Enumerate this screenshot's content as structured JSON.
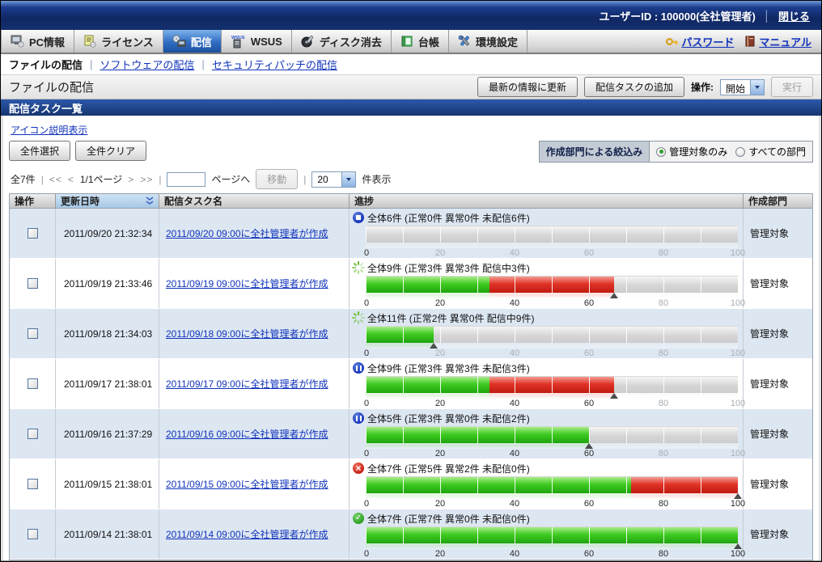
{
  "titlebar": {
    "user_label": "ユーザーID : 100000(全社管理者)",
    "close_label": "閉じる"
  },
  "tabs": [
    {
      "label": "PC情報",
      "selected": false
    },
    {
      "label": "ライセンス",
      "selected": false
    },
    {
      "label": "配信",
      "selected": true
    },
    {
      "label": "WSUS",
      "selected": false
    },
    {
      "label": "ディスク消去",
      "selected": false
    },
    {
      "label": "台帳",
      "selected": false
    },
    {
      "label": "環境設定",
      "selected": false
    }
  ],
  "quick_links": {
    "password": "パスワード",
    "manual": "マニュアル"
  },
  "subnav": {
    "current": "ファイルの配信",
    "software": "ソフトウェアの配信",
    "security_patch": "セキュリティパッチの配信"
  },
  "toolbar": {
    "page_title": "ファイルの配信",
    "refresh": "最新の情報に更新",
    "add_task": "配信タスクの追加",
    "operation_label": "操作:",
    "operation_value": "開始",
    "execute": "実行"
  },
  "section": {
    "title": "配信タスク一覧",
    "icon_legend_link": "アイコン説明表示",
    "select_all": "全件選択",
    "clear_all": "全件クリア"
  },
  "filter": {
    "label": "作成部門による絞込み",
    "options": [
      {
        "label": "管理対象のみ",
        "selected": true
      },
      {
        "label": "すべての部門",
        "selected": false
      }
    ]
  },
  "pagination": {
    "total": "全7件",
    "first": "<<",
    "prev": "<",
    "page_info": "1/1ページ",
    "next": ">",
    "last": ">>",
    "page_input_value": "",
    "goto_suffix": "ページへ",
    "move": "移動",
    "page_size": "20",
    "size_suffix": "件表示"
  },
  "table": {
    "headers": {
      "op": "操作",
      "updated": "更新日時",
      "task": "配信タスク名",
      "progress": "進捗",
      "dept": "作成部門"
    },
    "axis_ticks": [
      0,
      20,
      40,
      60,
      80,
      100
    ],
    "rows": [
      {
        "updated": "2011/09/20 21:32:34",
        "task": "2011/09/20 09:00に全社管理者が作成",
        "status": "stopped",
        "summary": "全体6件 (正常0件 異常0件 未配信6件)",
        "counts": {
          "total": 6,
          "normal": 0,
          "abnormal": 0,
          "other_label": "未配信",
          "other": 6
        },
        "green_pct": 0,
        "red_pct": 0,
        "marker_pct": null,
        "dept": "管理対象"
      },
      {
        "updated": "2011/09/19 21:33:46",
        "task": "2011/09/19 09:00に全社管理者が作成",
        "status": "running",
        "summary": "全体9件 (正常3件 異常3件 配信中3件)",
        "counts": {
          "total": 9,
          "normal": 3,
          "abnormal": 3,
          "other_label": "配信中",
          "other": 3
        },
        "green_pct": 33.3,
        "red_pct": 33.4,
        "marker_pct": 66.7,
        "dept": "管理対象"
      },
      {
        "updated": "2011/09/18 21:34:03",
        "task": "2011/09/18 09:00に全社管理者が作成",
        "status": "running",
        "summary": "全体11件 (正常2件 異常0件 配信中9件)",
        "counts": {
          "total": 11,
          "normal": 2,
          "abnormal": 0,
          "other_label": "配信中",
          "other": 9
        },
        "green_pct": 18.2,
        "red_pct": 0,
        "marker_pct": 18.2,
        "dept": "管理対象"
      },
      {
        "updated": "2011/09/17 21:38:01",
        "task": "2011/09/17 09:00に全社管理者が作成",
        "status": "paused",
        "summary": "全体9件 (正常3件 異常3件 未配信3件)",
        "counts": {
          "total": 9,
          "normal": 3,
          "abnormal": 3,
          "other_label": "未配信",
          "other": 3
        },
        "green_pct": 33.3,
        "red_pct": 33.4,
        "marker_pct": 66.7,
        "dept": "管理対象"
      },
      {
        "updated": "2011/09/16 21:37:29",
        "task": "2011/09/16 09:00に全社管理者が作成",
        "status": "paused",
        "summary": "全体5件 (正常3件 異常0件 未配信2件)",
        "counts": {
          "total": 5,
          "normal": 3,
          "abnormal": 0,
          "other_label": "未配信",
          "other": 2
        },
        "green_pct": 60,
        "red_pct": 0,
        "marker_pct": 60,
        "dept": "管理対象"
      },
      {
        "updated": "2011/09/15 21:38:01",
        "task": "2011/09/15 09:00に全社管理者が作成",
        "status": "error",
        "summary": "全体7件 (正常5件 異常2件 未配信0件)",
        "counts": {
          "total": 7,
          "normal": 5,
          "abnormal": 2,
          "other_label": "未配信",
          "other": 0
        },
        "green_pct": 71.4,
        "red_pct": 28.6,
        "marker_pct": 100,
        "dept": "管理対象"
      },
      {
        "updated": "2011/09/14 21:38:01",
        "task": "2011/09/14 09:00に全社管理者が作成",
        "status": "done",
        "summary": "全体7件 (正常7件 異常0件 未配信0件)",
        "counts": {
          "total": 7,
          "normal": 7,
          "abnormal": 0,
          "other_label": "未配信",
          "other": 0
        },
        "green_pct": 100,
        "red_pct": 0,
        "marker_pct": 100,
        "dept": "管理対象"
      }
    ]
  },
  "colors": {
    "accent_blue": "#1d4f9e",
    "bar_green": "#3fcb21",
    "bar_red": "#e03327",
    "bar_gray": "#d6d6d6",
    "row_alt": "#dde7f2",
    "link": "#1133bb"
  }
}
